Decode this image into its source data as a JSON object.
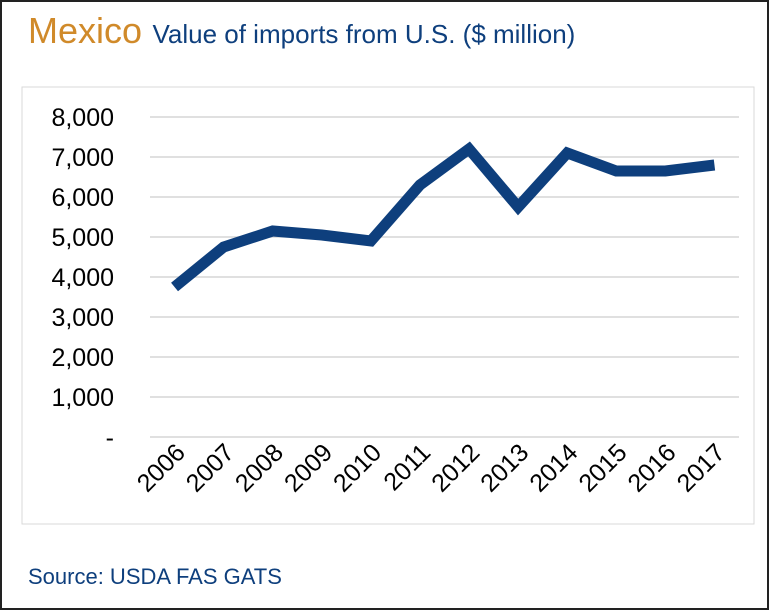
{
  "colors": {
    "title": "#d08a2a",
    "subtitle": "#0e3f7d",
    "line": "#0e3f7d",
    "grid": "#d6d6d6",
    "source": "#0e3f7d"
  },
  "header": {
    "title": "Mexico",
    "subtitle": "Value of imports from U.S. ($ million)"
  },
  "footer": {
    "source": "Source: USDA FAS GATS"
  },
  "chart_data": {
    "type": "line",
    "categories": [
      "2006",
      "2007",
      "2008",
      "2009",
      "2010",
      "2011",
      "2012",
      "2013",
      "2014",
      "2015",
      "2016",
      "2017"
    ],
    "series": [
      {
        "values": [
          3750,
          4750,
          5150,
          5050,
          4900,
          6300,
          7200,
          5750,
          7100,
          6650,
          6650,
          6800
        ]
      }
    ],
    "ylim": [
      0,
      8000
    ],
    "yticks": [
      0,
      1000,
      2000,
      3000,
      4000,
      5000,
      6000,
      7000,
      8000
    ],
    "ytick_labels": [
      "-",
      "1,000",
      "2,000",
      "3,000",
      "4,000",
      "5,000",
      "6,000",
      "7,000",
      "8,000"
    ],
    "grid": true,
    "legend": "none"
  }
}
